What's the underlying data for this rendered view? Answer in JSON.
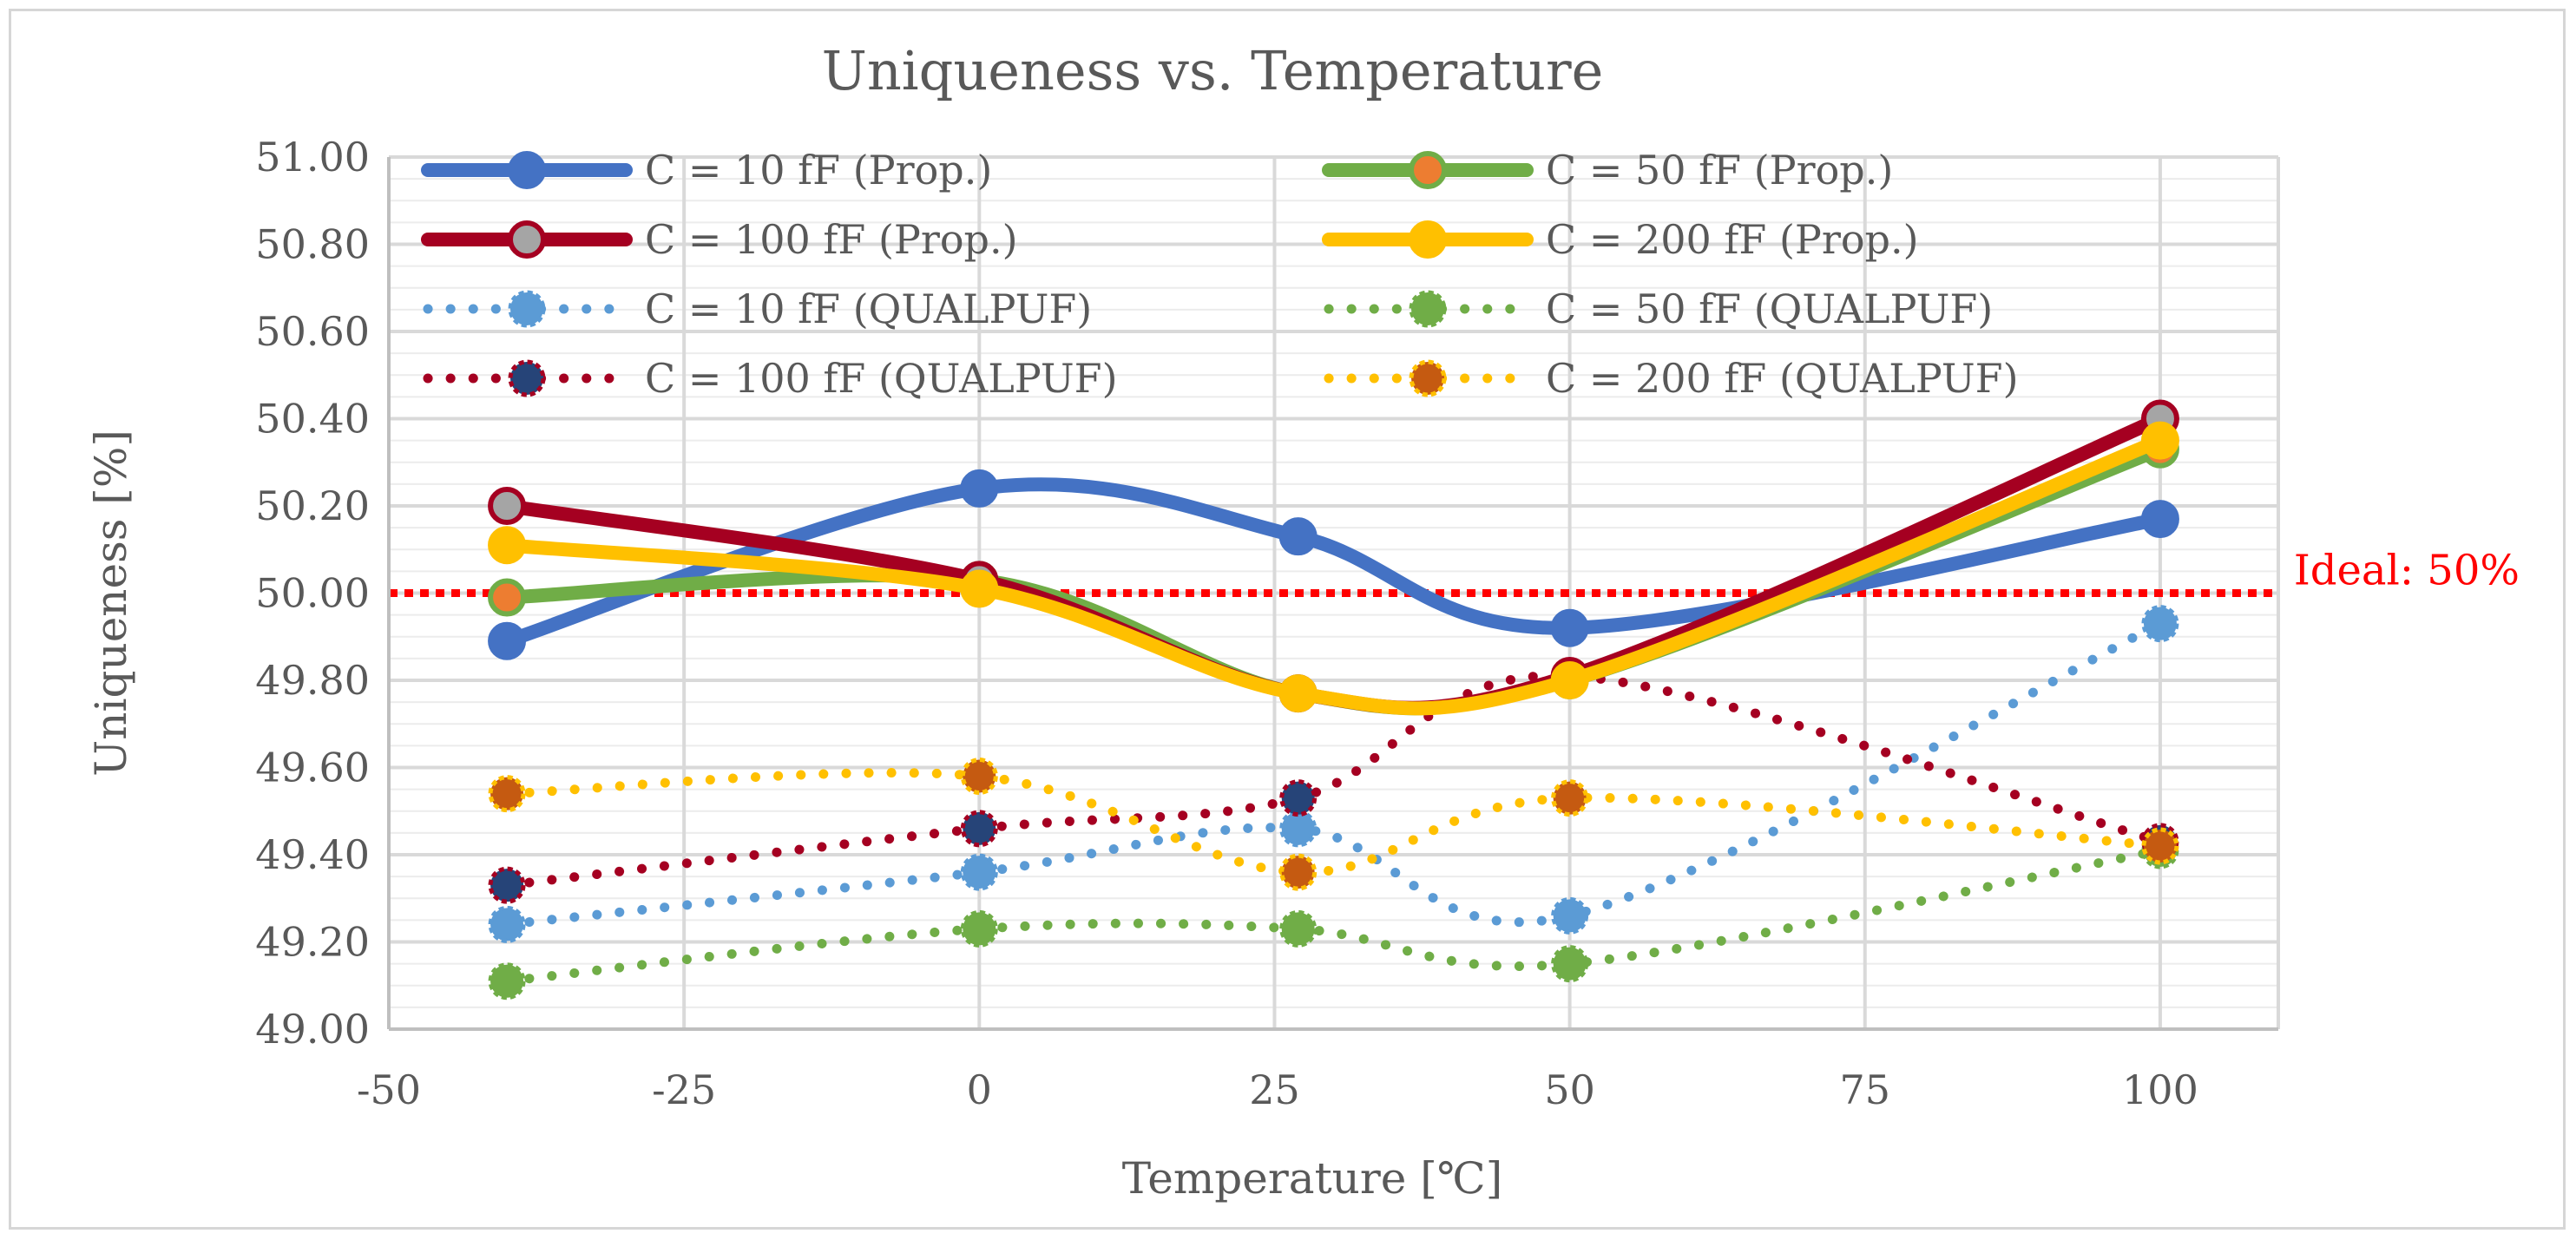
{
  "chart_data": {
    "type": "line",
    "title": "Uniqueness vs. Temperature",
    "xlabel": "Temperature [℃]",
    "ylabel": "Uniqueness [%]",
    "xlim": [
      -50,
      110
    ],
    "ylim": [
      49.0,
      51.0
    ],
    "xticks": [
      "-50",
      "-25",
      "0",
      "25",
      "50",
      "75",
      "100"
    ],
    "yticks": [
      "49.00",
      "49.20",
      "49.40",
      "49.60",
      "49.80",
      "50.00",
      "50.20",
      "50.40",
      "50.60",
      "50.80",
      "51.00"
    ],
    "grid": true,
    "legend_position": "top",
    "x": [
      -40,
      0,
      27,
      50,
      100
    ],
    "reference_line": {
      "y": 50.0,
      "label": "Ideal: 50%",
      "color": "#ff0000"
    },
    "series": [
      {
        "name": "C = 10 fF (Prop.)",
        "values": [
          49.89,
          50.24,
          50.13,
          49.92,
          50.17
        ],
        "color": "#4472c4",
        "marker_color": "#4472c4",
        "style": "solid"
      },
      {
        "name": "C = 50 fF (Prop.)",
        "values": [
          49.99,
          50.03,
          49.77,
          49.8,
          50.33
        ],
        "color": "#70ad47",
        "marker_color": "#ed7d31",
        "style": "solid"
      },
      {
        "name": "C = 100 fF (Prop.)",
        "values": [
          50.2,
          50.03,
          49.77,
          49.81,
          50.4
        ],
        "color": "#a50021",
        "marker_color": "#a5a5a5",
        "style": "solid"
      },
      {
        "name": "C = 200 fF (Prop.)",
        "values": [
          50.11,
          50.01,
          49.77,
          49.8,
          50.35
        ],
        "color": "#ffc000",
        "marker_color": "#ffc000",
        "style": "solid"
      },
      {
        "name": "C = 10 fF (QUALPUF)",
        "values": [
          49.24,
          49.36,
          49.46,
          49.26,
          49.93
        ],
        "color": "#5b9bd5",
        "marker_color": "#5b9bd5",
        "style": "dotted"
      },
      {
        "name": "C = 50 fF (QUALPUF)",
        "values": [
          49.11,
          49.23,
          49.23,
          49.15,
          49.41
        ],
        "color": "#70ad47",
        "marker_color": "#70ad47",
        "style": "dotted"
      },
      {
        "name": "C = 100 fF (QUALPUF)",
        "values": [
          49.33,
          49.46,
          49.53,
          49.81,
          49.43
        ],
        "color": "#a50021",
        "marker_color": "#264478",
        "style": "dotted"
      },
      {
        "name": "C = 200 fF (QUALPUF)",
        "values": [
          49.54,
          49.58,
          49.36,
          49.53,
          49.42
        ],
        "color": "#ffc000",
        "marker_color": "#c55a11",
        "style": "dotted"
      }
    ]
  }
}
